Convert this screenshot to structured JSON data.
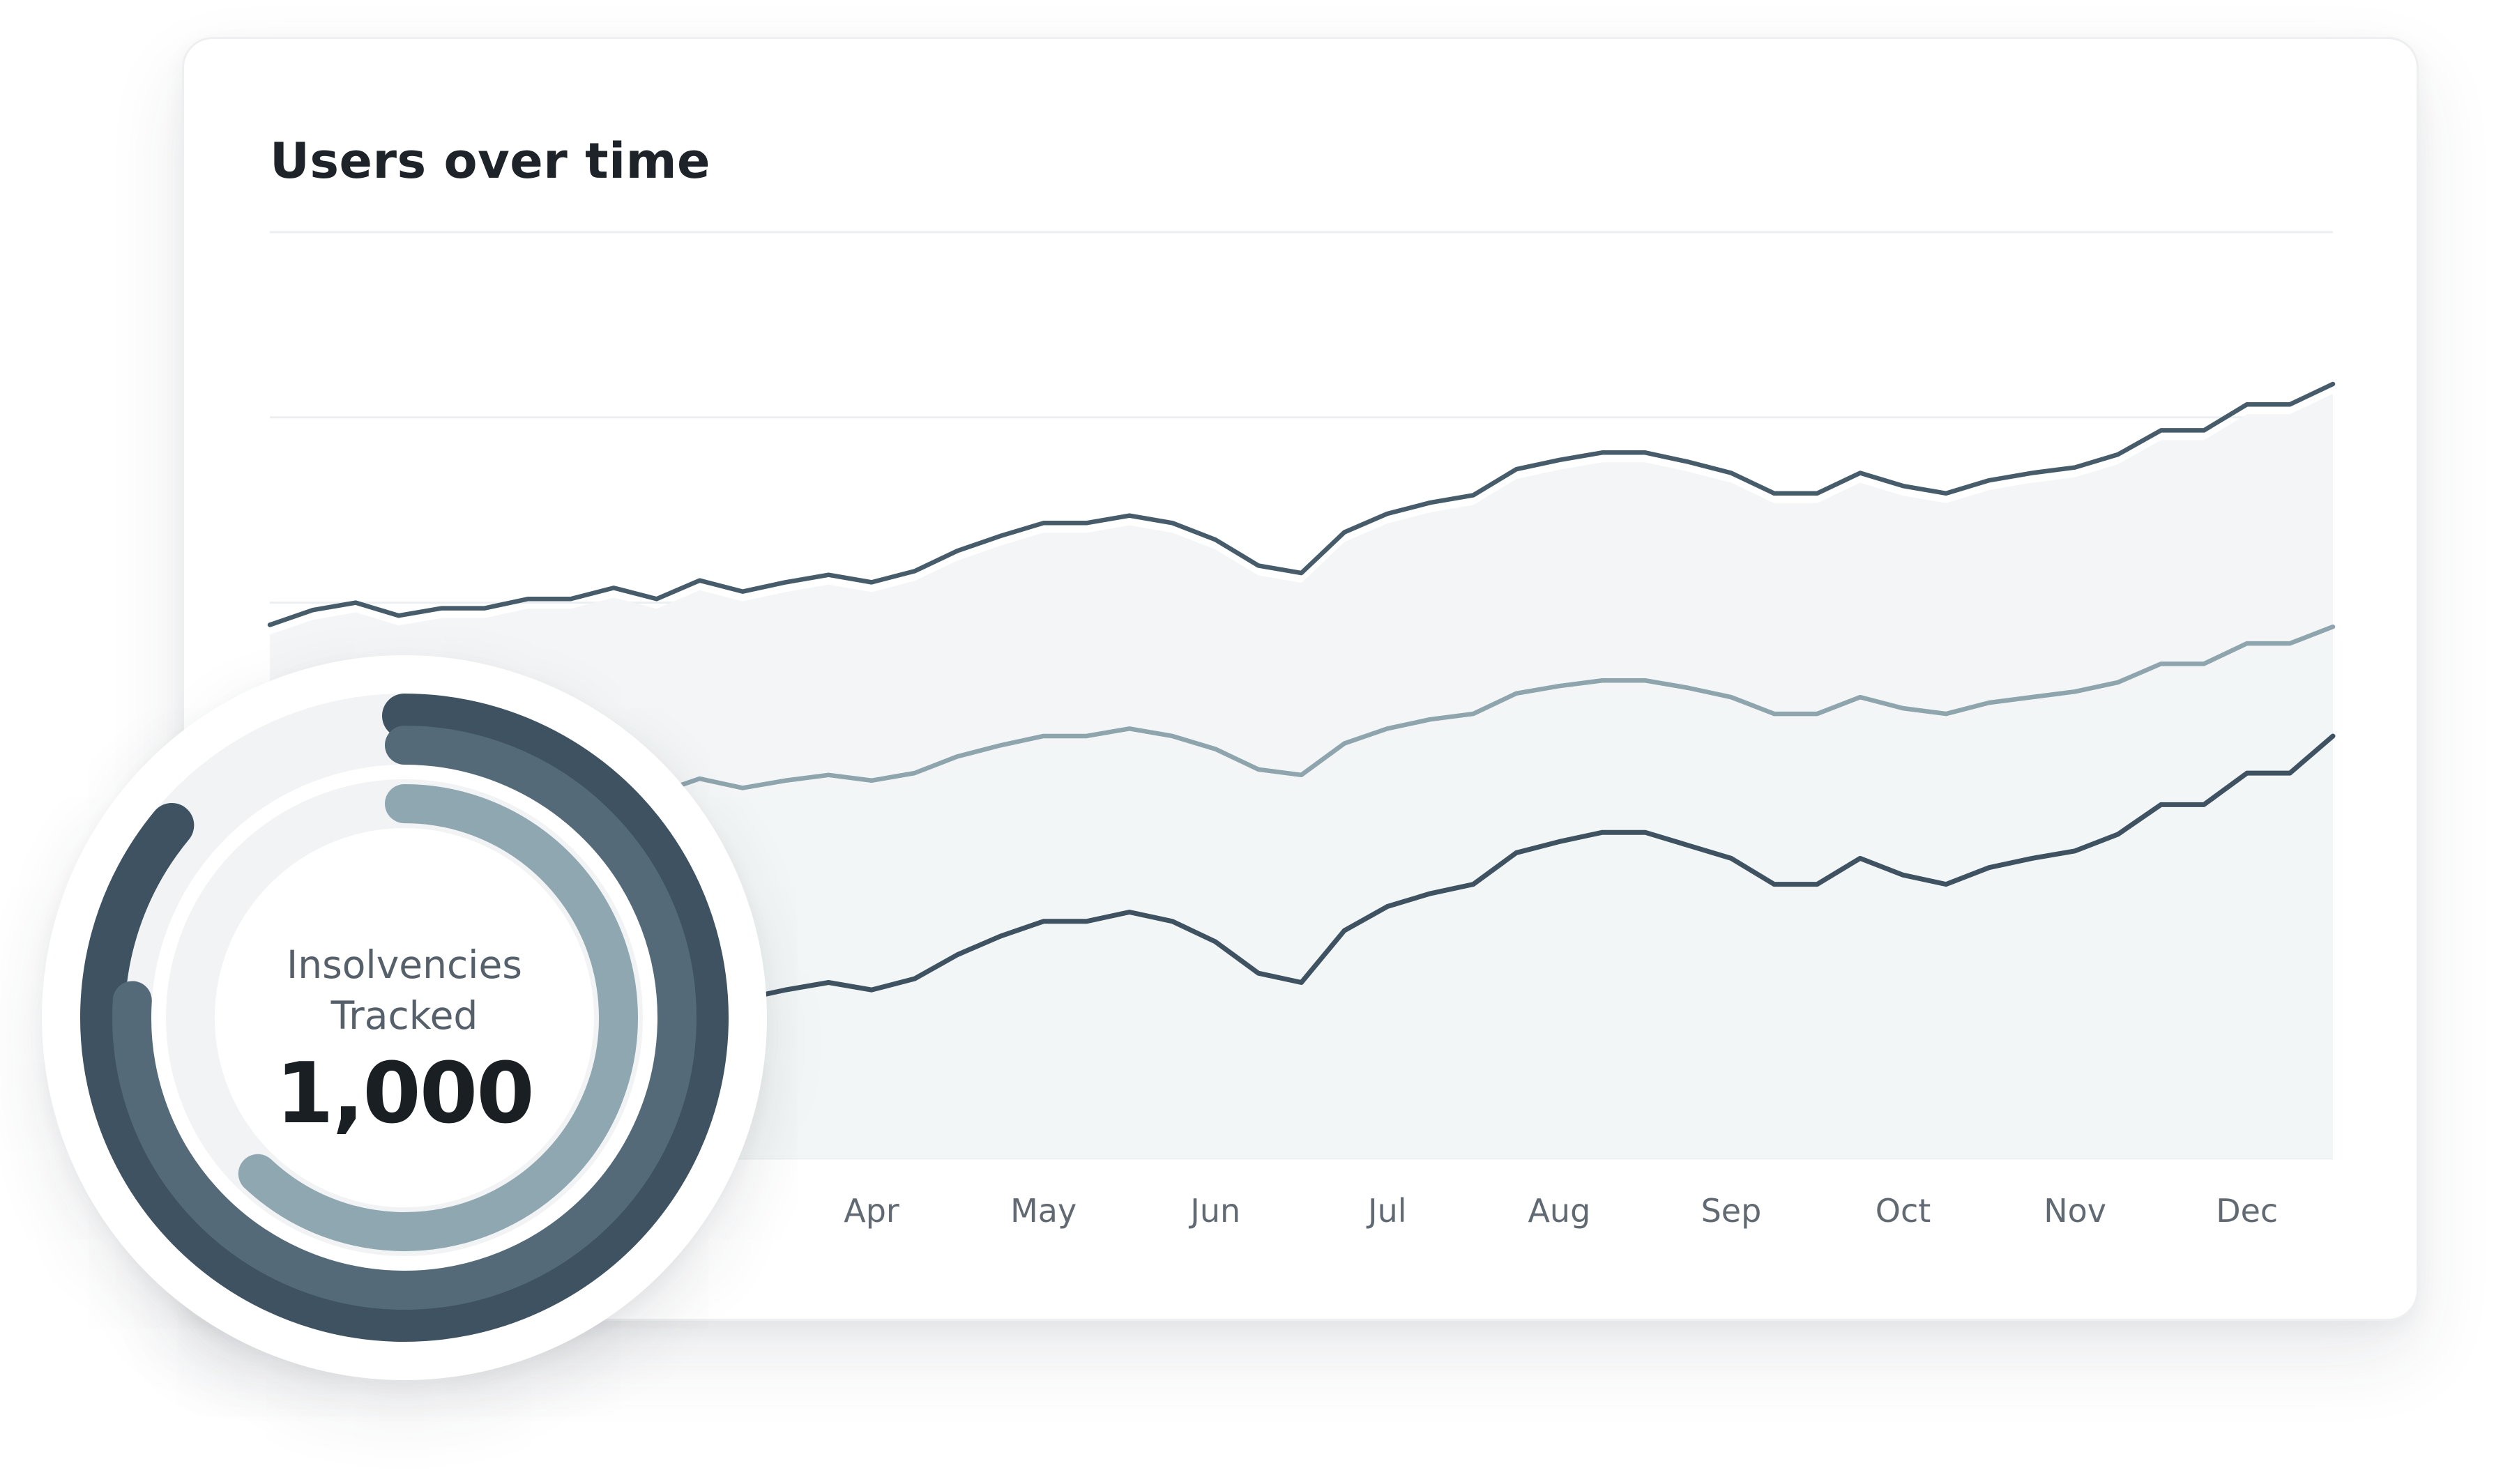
{
  "card": {
    "title": "Users over time"
  },
  "kpi": {
    "label_line1": "Insolvencies",
    "label_line2": "Tracked",
    "value": "1,000",
    "rings": [
      {
        "name": "outer",
        "color": "#3e5261",
        "fraction": 0.86
      },
      {
        "name": "middle",
        "color": "#546a78",
        "fraction": 0.76
      },
      {
        "name": "inner",
        "color": "#8fa7b0",
        "fraction": 0.62
      }
    ]
  },
  "chart_data": {
    "type": "line",
    "title": "Users over time",
    "xlabel": "",
    "ylabel": "",
    "x_tick_labels": [
      "Apr",
      "May",
      "Jun",
      "Jul",
      "Aug",
      "Sep",
      "Oct",
      "Nov",
      "Dec"
    ],
    "x_tick_positions": [
      3.5,
      4.5,
      5.5,
      6.5,
      7.5,
      8.5,
      9.5,
      10.5,
      11.5
    ],
    "xlim": [
      0,
      12
    ],
    "ylim": [
      0,
      5
    ],
    "grid": true,
    "grid_y_values": [
      1,
      2,
      3,
      4,
      5
    ],
    "legend": "none",
    "colors": {
      "top": "#475c6b",
      "middle": "#8ea5ae",
      "bottom": "#3f5261",
      "fill": "#f3f5f6",
      "grid": "#eceff1"
    },
    "series": [
      {
        "key": "top",
        "x": [
          0,
          0.25,
          0.5,
          0.75,
          1,
          1.25,
          1.5,
          1.75,
          2,
          2.25,
          2.5,
          2.75,
          3,
          3.25,
          3.5,
          3.75,
          4,
          4.25,
          4.5,
          4.75,
          5,
          5.25,
          5.5,
          5.75,
          6,
          6.25,
          6.5,
          6.75,
          7,
          7.25,
          7.5,
          7.75,
          8,
          8.25,
          8.5,
          8.75,
          9,
          9.25,
          9.5,
          9.75,
          10,
          10.25,
          10.5,
          10.75,
          11,
          11.25,
          11.5,
          11.75,
          12
        ],
        "y": [
          2.88,
          2.96,
          3.0,
          2.93,
          2.97,
          2.97,
          3.02,
          3.02,
          3.08,
          3.02,
          3.12,
          3.06,
          3.11,
          3.15,
          3.11,
          3.17,
          3.28,
          3.36,
          3.43,
          3.43,
          3.47,
          3.43,
          3.34,
          3.2,
          3.16,
          3.38,
          3.48,
          3.54,
          3.58,
          3.72,
          3.77,
          3.81,
          3.81,
          3.76,
          3.7,
          3.59,
          3.59,
          3.7,
          3.63,
          3.59,
          3.66,
          3.7,
          3.73,
          3.8,
          3.93,
          3.93,
          4.07,
          4.07,
          4.18
        ]
      },
      {
        "key": "middle",
        "x": [
          0,
          0.25,
          0.5,
          0.75,
          1,
          1.25,
          1.5,
          1.75,
          2,
          2.25,
          2.5,
          2.75,
          3,
          3.25,
          3.5,
          3.75,
          4,
          4.25,
          4.5,
          4.75,
          5,
          5.25,
          5.5,
          5.75,
          6,
          6.25,
          6.5,
          6.75,
          7,
          7.25,
          7.5,
          7.75,
          8,
          8.25,
          8.5,
          8.75,
          9,
          9.25,
          9.5,
          9.75,
          10,
          10.25,
          10.5,
          10.75,
          11,
          11.25,
          11.5,
          11.75,
          12
        ],
        "y": [
          1.89,
          1.93,
          1.96,
          1.9,
          1.93,
          1.93,
          1.97,
          1.97,
          2.02,
          1.97,
          2.05,
          2.0,
          2.04,
          2.07,
          2.04,
          2.08,
          2.17,
          2.23,
          2.28,
          2.28,
          2.32,
          2.28,
          2.21,
          2.1,
          2.07,
          2.24,
          2.32,
          2.37,
          2.4,
          2.51,
          2.55,
          2.58,
          2.58,
          2.54,
          2.49,
          2.4,
          2.4,
          2.49,
          2.43,
          2.4,
          2.46,
          2.49,
          2.52,
          2.57,
          2.67,
          2.67,
          2.78,
          2.78,
          2.87
        ]
      },
      {
        "key": "bottom",
        "x": [
          0,
          0.25,
          0.5,
          0.75,
          1,
          1.25,
          1.5,
          1.75,
          2,
          2.25,
          2.5,
          2.75,
          3,
          3.25,
          3.5,
          3.75,
          4,
          4.25,
          4.5,
          4.75,
          5,
          5.25,
          5.5,
          5.75,
          6,
          6.25,
          6.5,
          6.75,
          7,
          7.25,
          7.5,
          7.75,
          8,
          8.25,
          8.5,
          8.75,
          9,
          9.25,
          9.5,
          9.75,
          10,
          10.25,
          10.5,
          10.75,
          11,
          11.25,
          11.5,
          11.75,
          12
        ],
        "y": [
          0.68,
          0.76,
          0.8,
          0.73,
          0.77,
          0.77,
          0.82,
          0.82,
          0.88,
          0.82,
          0.92,
          0.86,
          0.91,
          0.95,
          0.91,
          0.97,
          1.1,
          1.2,
          1.28,
          1.28,
          1.33,
          1.28,
          1.17,
          1.0,
          0.95,
          1.23,
          1.36,
          1.43,
          1.48,
          1.65,
          1.71,
          1.76,
          1.76,
          1.69,
          1.62,
          1.48,
          1.48,
          1.62,
          1.53,
          1.48,
          1.57,
          1.62,
          1.66,
          1.75,
          1.91,
          1.91,
          2.08,
          2.08,
          2.28
        ]
      }
    ]
  }
}
